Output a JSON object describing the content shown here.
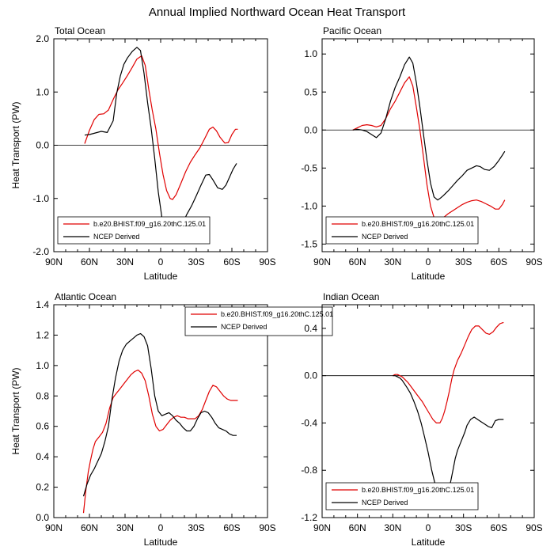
{
  "title": "Annual Implied Northward Ocean Heat Transport",
  "colors": {
    "model": "#e00000",
    "obs": "#000000"
  },
  "chart_data": [
    {
      "type": "line",
      "title": "Total Ocean",
      "xlabel": "Latitude",
      "ylabel": "Heat Transport (PW)",
      "xticks": [
        "90N",
        "60N",
        "30N",
        "0",
        "30S",
        "60S",
        "90S"
      ],
      "yticks": [
        "2.0",
        "1.0",
        "0.0",
        "-1.0",
        "-2.0"
      ],
      "ylim": [
        -2.0,
        2.0
      ],
      "zero_line": true,
      "legend": {
        "position": "bottom-left"
      },
      "series": [
        {
          "name": "b.e20.BHIST.f09_g16.20thC.125.01",
          "color": "#e00000",
          "x": [
            64,
            60,
            56,
            52,
            48,
            44,
            40,
            36,
            32,
            28,
            24,
            20,
            16,
            13,
            10,
            7,
            4,
            1,
            -2,
            -5,
            -8,
            -10,
            -13,
            -17,
            -21,
            -25,
            -29,
            -33,
            -37,
            -41,
            -44,
            -47,
            -50,
            -54,
            -57,
            -60,
            -63,
            -65
          ],
          "y": [
            0.03,
            0.28,
            0.48,
            0.58,
            0.59,
            0.66,
            0.86,
            1.04,
            1.17,
            1.31,
            1.46,
            1.62,
            1.68,
            1.5,
            1.05,
            0.65,
            0.3,
            -0.15,
            -0.55,
            -0.85,
            -1.0,
            -1.02,
            -0.93,
            -0.72,
            -0.5,
            -0.32,
            -0.18,
            -0.05,
            0.12,
            0.3,
            0.34,
            0.27,
            0.15,
            0.04,
            0.05,
            0.2,
            0.3,
            0.3
          ]
        },
        {
          "name": "NCEP Derived",
          "color": "#000000",
          "x": [
            64,
            60,
            55,
            50,
            45,
            40,
            37,
            34,
            31,
            28,
            24,
            20,
            17,
            14,
            11,
            8,
            5,
            2,
            -1,
            -4,
            -7,
            -10,
            -13,
            -16,
            -19,
            -22,
            -26,
            -30,
            -34,
            -38,
            -41,
            -44,
            -48,
            -52,
            -55,
            -58,
            -61,
            -64
          ],
          "y": [
            0.19,
            0.2,
            0.23,
            0.26,
            0.24,
            0.46,
            0.98,
            1.3,
            1.52,
            1.64,
            1.76,
            1.84,
            1.78,
            1.35,
            0.8,
            0.32,
            -0.25,
            -0.88,
            -1.35,
            -1.65,
            -1.66,
            -1.62,
            -1.64,
            -1.55,
            -1.45,
            -1.3,
            -1.14,
            -0.95,
            -0.75,
            -0.56,
            -0.55,
            -0.65,
            -0.8,
            -0.83,
            -0.75,
            -0.6,
            -0.45,
            -0.34
          ]
        }
      ]
    },
    {
      "type": "line",
      "title": "Pacific Ocean",
      "xlabel": "Latitude",
      "ylabel": "",
      "xticks": [
        "90N",
        "60N",
        "30N",
        "0",
        "30S",
        "60S",
        "90S"
      ],
      "yticks": [
        "1.0",
        "0.5",
        "0.0",
        "-0.5",
        "-1.0",
        "-1.5"
      ],
      "ylim": [
        -1.6,
        1.2
      ],
      "zero_line": true,
      "legend": {
        "position": "bottom-left"
      },
      "series": [
        {
          "name": "b.e20.BHIST.f09_g16.20thC.125.01",
          "color": "#e00000",
          "x": [
            64,
            60,
            56,
            52,
            48,
            44,
            40,
            36,
            32,
            28,
            24,
            20,
            16,
            13,
            10,
            7,
            4,
            1,
            -2,
            -5,
            -8,
            -10,
            -13,
            -17,
            -21,
            -25,
            -29,
            -33,
            -37,
            -41,
            -45,
            -49,
            -53,
            -57,
            -60,
            -63,
            -65
          ],
          "y": [
            0.0,
            0.03,
            0.06,
            0.07,
            0.06,
            0.04,
            0.06,
            0.15,
            0.28,
            0.38,
            0.5,
            0.62,
            0.7,
            0.58,
            0.3,
            0.0,
            -0.35,
            -0.72,
            -1.0,
            -1.15,
            -1.2,
            -1.2,
            -1.15,
            -1.1,
            -1.06,
            -1.02,
            -0.98,
            -0.95,
            -0.93,
            -0.92,
            -0.94,
            -0.97,
            -1.0,
            -1.04,
            -1.04,
            -0.98,
            -0.92
          ]
        },
        {
          "name": "NCEP Derived",
          "color": "#000000",
          "x": [
            64,
            60,
            56,
            52,
            48,
            44,
            40,
            36,
            32,
            28,
            24,
            20,
            16,
            13,
            10,
            7,
            4,
            1,
            -2,
            -5,
            -8,
            -10,
            -13,
            -17,
            -21,
            -25,
            -29,
            -33,
            -37,
            -41,
            -44,
            -48,
            -52,
            -56,
            -60,
            -63,
            -65
          ],
          "y": [
            0.0,
            0.01,
            0.0,
            -0.02,
            -0.06,
            -0.1,
            -0.04,
            0.15,
            0.38,
            0.56,
            0.7,
            0.86,
            0.96,
            0.88,
            0.62,
            0.3,
            -0.05,
            -0.4,
            -0.7,
            -0.88,
            -0.92,
            -0.9,
            -0.86,
            -0.8,
            -0.73,
            -0.66,
            -0.6,
            -0.53,
            -0.5,
            -0.47,
            -0.48,
            -0.52,
            -0.53,
            -0.48,
            -0.4,
            -0.33,
            -0.28
          ]
        }
      ]
    },
    {
      "type": "line",
      "title": "Atlantic Ocean",
      "xlabel": "Latitude",
      "ylabel": "Heat Transport (PW)",
      "xticks": [
        "90N",
        "60N",
        "30N",
        "0",
        "30S",
        "60S",
        "90S"
      ],
      "yticks": [
        "1.4",
        "1.2",
        "1.0",
        "0.8",
        "0.6",
        "0.4",
        "0.2",
        "0.0"
      ],
      "ylim": [
        0.0,
        1.4
      ],
      "zero_line": false,
      "legend": {
        "position": "top-right"
      },
      "series": [
        {
          "name": "b.e20.BHIST.f09_g16.20thC.125.01",
          "color": "#e00000",
          "x": [
            65,
            63,
            61,
            59,
            57,
            55,
            52,
            49,
            46,
            43,
            40,
            37,
            34,
            31,
            28,
            25,
            22,
            19,
            16,
            13,
            10,
            7,
            4,
            1,
            -2,
            -5,
            -8,
            -11,
            -14,
            -17,
            -20,
            -23,
            -26,
            -29,
            -32,
            -35,
            -38,
            -41,
            -44,
            -47,
            -50,
            -53,
            -56,
            -59,
            -62,
            -65
          ],
          "y": [
            0.03,
            0.18,
            0.3,
            0.38,
            0.45,
            0.5,
            0.53,
            0.56,
            0.62,
            0.72,
            0.79,
            0.82,
            0.85,
            0.88,
            0.91,
            0.94,
            0.96,
            0.97,
            0.95,
            0.9,
            0.8,
            0.68,
            0.6,
            0.57,
            0.58,
            0.61,
            0.64,
            0.66,
            0.67,
            0.66,
            0.66,
            0.65,
            0.65,
            0.65,
            0.67,
            0.71,
            0.77,
            0.83,
            0.87,
            0.86,
            0.83,
            0.8,
            0.78,
            0.77,
            0.77,
            0.77
          ]
        },
        {
          "name": "NCEP Derived",
          "color": "#000000",
          "x": [
            65,
            62,
            59,
            56,
            53,
            50,
            47,
            44,
            41,
            38,
            35,
            32,
            29,
            26,
            23,
            20,
            17,
            14,
            11,
            8,
            5,
            2,
            -1,
            -4,
            -7,
            -10,
            -13,
            -16,
            -19,
            -22,
            -25,
            -28,
            -31,
            -34,
            -37,
            -40,
            -43,
            -46,
            -49,
            -52,
            -55,
            -58,
            -61,
            -64
          ],
          "y": [
            0.14,
            0.22,
            0.28,
            0.32,
            0.37,
            0.42,
            0.5,
            0.6,
            0.78,
            0.92,
            1.03,
            1.1,
            1.14,
            1.16,
            1.18,
            1.2,
            1.21,
            1.19,
            1.13,
            0.98,
            0.8,
            0.7,
            0.67,
            0.68,
            0.69,
            0.67,
            0.64,
            0.62,
            0.59,
            0.57,
            0.57,
            0.6,
            0.65,
            0.69,
            0.7,
            0.69,
            0.66,
            0.62,
            0.59,
            0.58,
            0.57,
            0.55,
            0.54,
            0.54
          ]
        }
      ]
    },
    {
      "type": "line",
      "title": "Indian Ocean",
      "xlabel": "Latitude",
      "ylabel": "",
      "xticks": [
        "90N",
        "60N",
        "30N",
        "0",
        "30S",
        "60S",
        "90S"
      ],
      "yticks": [
        "0.4",
        "0.0",
        "-0.4",
        "-0.8",
        "-1.2"
      ],
      "ylim": [
        -1.2,
        0.6
      ],
      "zero_line": true,
      "legend": {
        "position": "bottom-left"
      },
      "series": [
        {
          "name": "b.e20.BHIST.f09_g16.20thC.125.01",
          "color": "#e00000",
          "x": [
            30,
            28,
            26,
            24,
            22,
            20,
            17,
            14,
            11,
            8,
            5,
            2,
            -1,
            -4,
            -7,
            -10,
            -12,
            -14,
            -16,
            -18,
            -20,
            -22,
            -25,
            -28,
            -31,
            -34,
            -37,
            -40,
            -43,
            -46,
            -49,
            -52,
            -55,
            -58,
            -61,
            -64
          ],
          "y": [
            0.0,
            0.01,
            0.01,
            0.0,
            -0.01,
            -0.03,
            -0.06,
            -0.1,
            -0.14,
            -0.18,
            -0.22,
            -0.27,
            -0.32,
            -0.37,
            -0.4,
            -0.4,
            -0.36,
            -0.3,
            -0.22,
            -0.13,
            -0.03,
            0.05,
            0.13,
            0.19,
            0.26,
            0.33,
            0.39,
            0.42,
            0.42,
            0.39,
            0.36,
            0.35,
            0.37,
            0.41,
            0.44,
            0.45
          ]
        },
        {
          "name": "NCEP Derived",
          "color": "#000000",
          "x": [
            30,
            28,
            26,
            24,
            22,
            20,
            18,
            15,
            12,
            9,
            6,
            3,
            0,
            -3,
            -6,
            -9,
            -11,
            -13,
            -15,
            -17,
            -19,
            -21,
            -23,
            -25,
            -27,
            -29,
            -31,
            -33,
            -36,
            -39,
            -42,
            -45,
            -48,
            -51,
            -54,
            -57,
            -60,
            -62,
            -64
          ],
          "y": [
            0.0,
            0.0,
            -0.01,
            -0.02,
            -0.04,
            -0.07,
            -0.1,
            -0.15,
            -0.22,
            -0.3,
            -0.4,
            -0.52,
            -0.65,
            -0.8,
            -0.92,
            -1.0,
            -1.03,
            -1.04,
            -1.02,
            -0.98,
            -0.9,
            -0.8,
            -0.7,
            -0.63,
            -0.58,
            -0.53,
            -0.48,
            -0.42,
            -0.37,
            -0.35,
            -0.37,
            -0.39,
            -0.41,
            -0.43,
            -0.44,
            -0.38,
            -0.37,
            -0.37,
            -0.37
          ]
        }
      ]
    }
  ]
}
